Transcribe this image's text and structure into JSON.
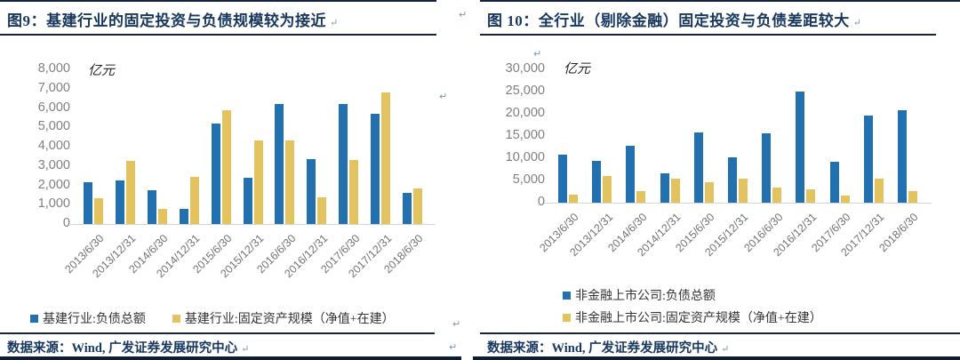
{
  "page": {
    "paragraph_mark": "↵"
  },
  "panels": [
    {
      "title": "图9：基建行业的固定投资与负债规模较为接近",
      "source": "数据来源：Wind, 广发证券发展研究中心"
    },
    {
      "title": "图 10：全行业（剔除金融）固定投资与负债差距较大",
      "source": "数据来源：Wind, 广发证券发展研究中心"
    }
  ],
  "chart_data": [
    {
      "type": "bar",
      "title": "图9：基建行业的固定投资与负债规模较为接近",
      "unit": "亿元",
      "xlabel": "",
      "ylabel": "亿元",
      "ylim": [
        0,
        8000
      ],
      "ytick_step": 1000,
      "grid": false,
      "legend_position": "bottom",
      "categories": [
        "2013/6/30",
        "2013/12/31",
        "2014/6/30",
        "2014/12/31",
        "2015/6/30",
        "2015/12/31",
        "2016/6/30",
        "2016/12/31",
        "2017/6/30",
        "2017/12/31",
        "2018/6/30"
      ],
      "series": [
        {
          "name": "基建行业:负债总额",
          "color": "#2271ae",
          "values": [
            2150,
            2250,
            1750,
            800,
            5200,
            2400,
            6200,
            3350,
            6200,
            5700,
            1600
          ]
        },
        {
          "name": "基建行业:固定资产规模（净值+在建）",
          "color": "#e2c360",
          "values": [
            1350,
            3250,
            800,
            2450,
            5900,
            4300,
            4300,
            1400,
            3300,
            6800,
            1850
          ]
        }
      ]
    },
    {
      "type": "bar",
      "title": "图 10：全行业（剔除金融）固定投资与负债差距较大",
      "unit": "亿元",
      "xlabel": "",
      "ylabel": "亿元",
      "ylim": [
        0,
        30000
      ],
      "ytick_step": 5000,
      "grid": false,
      "legend_position": "bottom",
      "categories": [
        "2013/6/30",
        "2013/12/31",
        "2014/6/30",
        "2014/12/31",
        "2015/6/30",
        "2015/12/31",
        "2016/6/30",
        "2016/12/31",
        "2017/6/30",
        "2017/12/31",
        "2018/6/30"
      ],
      "series": [
        {
          "name": "非金融上市公司:负债总额",
          "color": "#2271ae",
          "values": [
            10700,
            9300,
            12700,
            6500,
            15700,
            10200,
            15500,
            25000,
            9200,
            19500,
            20800
          ]
        },
        {
          "name": "非金融上市公司:固定资产规模（净值+在建）",
          "color": "#e2c360",
          "values": [
            1700,
            5900,
            2500,
            5300,
            4500,
            5500,
            3300,
            3000,
            1500,
            5500,
            2500
          ]
        }
      ]
    }
  ]
}
